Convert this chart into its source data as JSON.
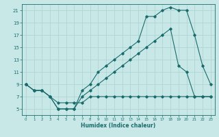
{
  "xlabel": "Humidex (Indice chaleur)",
  "background_color": "#c8e8e8",
  "grid_color": "#b0d4d4",
  "line_color": "#1a6b6b",
  "xlim": [
    -0.5,
    23.5
  ],
  "ylim": [
    4,
    22
  ],
  "xticks": [
    0,
    1,
    2,
    3,
    4,
    5,
    6,
    7,
    8,
    9,
    10,
    11,
    12,
    13,
    14,
    15,
    16,
    17,
    18,
    19,
    20,
    21,
    22,
    23
  ],
  "yticks": [
    5,
    7,
    9,
    11,
    13,
    15,
    17,
    19,
    21
  ],
  "series1_x": [
    0,
    1,
    2,
    3,
    4,
    5,
    6,
    7,
    8,
    9,
    10,
    11,
    12,
    13,
    14,
    15,
    16,
    17,
    18,
    19,
    20,
    21,
    22,
    23
  ],
  "series1_y": [
    9,
    8,
    8,
    7,
    6,
    6,
    6,
    6,
    7,
    7,
    7,
    7,
    7,
    7,
    7,
    7,
    7,
    7,
    7,
    7,
    7,
    7,
    7,
    7
  ],
  "series2_x": [
    0,
    1,
    2,
    3,
    4,
    5,
    6,
    7,
    8,
    9,
    10,
    11,
    12,
    13,
    14,
    15,
    16,
    17,
    18,
    19,
    20,
    21,
    22,
    23
  ],
  "series2_y": [
    9,
    8,
    8,
    7,
    5,
    5,
    5,
    8,
    9,
    11,
    12,
    13,
    14,
    15,
    16,
    20,
    20,
    21,
    21.5,
    21,
    21,
    17,
    12,
    9
  ],
  "series3_x": [
    0,
    1,
    2,
    3,
    4,
    5,
    6,
    7,
    8,
    9,
    10,
    11,
    12,
    13,
    14,
    15,
    16,
    17,
    18,
    19,
    20,
    21,
    22,
    23
  ],
  "series3_y": [
    9,
    8,
    8,
    7,
    5,
    5,
    5,
    7,
    8,
    9,
    10,
    11,
    12,
    13,
    14,
    15,
    16,
    17,
    18,
    12,
    11,
    7,
    7,
    7
  ]
}
